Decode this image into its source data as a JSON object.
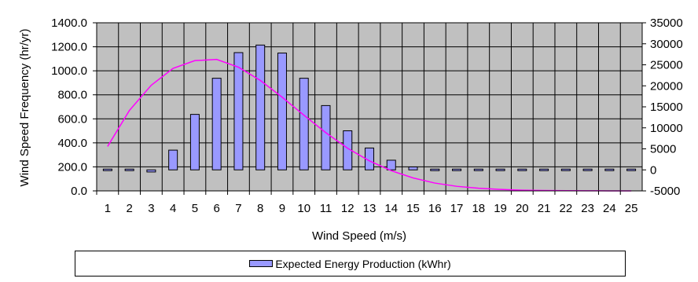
{
  "chart_data": {
    "type": "bar",
    "xlabel": "Wind Speed (m/s)",
    "ylabel_left": "Wind Speed Frequency  (hr/yr)",
    "ylabel_right": "",
    "categories": [
      "1",
      "2",
      "3",
      "4",
      "5",
      "6",
      "7",
      "8",
      "9",
      "10",
      "11",
      "12",
      "13",
      "14",
      "15",
      "16",
      "17",
      "18",
      "19",
      "20",
      "21",
      "22",
      "23",
      "24",
      "25"
    ],
    "ylim_left": [
      0,
      1400
    ],
    "yticks_left": [
      "0.0",
      "200.0",
      "400.0",
      "600.0",
      "800.0",
      "1000.0",
      "1200.0",
      "1400.0"
    ],
    "ylim_right": [
      -5000,
      35000
    ],
    "yticks_right": [
      "-5000",
      "0",
      "5000",
      "10000",
      "15000",
      "20000",
      "25000",
      "30000",
      "35000"
    ],
    "grid": true,
    "legend_position": "bottom",
    "series": [
      {
        "name": "Expected Energy Production (kWhr)",
        "axis": "right",
        "style": "bar",
        "color": "#9999ff",
        "values": [
          -100,
          -300,
          -500,
          4700,
          13200,
          21800,
          27900,
          29700,
          27800,
          21800,
          15300,
          9300,
          5200,
          2300,
          700,
          200,
          0,
          0,
          0,
          0,
          0,
          0,
          0,
          0,
          0
        ]
      },
      {
        "axis": "left",
        "style": "line",
        "color": "#ff00ff",
        "values": [
          370,
          670,
          880,
          1020,
          1085,
          1095,
          1030,
          920,
          780,
          630,
          485,
          355,
          250,
          168,
          108,
          65,
          38,
          22,
          12,
          6,
          3,
          2,
          1,
          0,
          0
        ]
      }
    ]
  }
}
